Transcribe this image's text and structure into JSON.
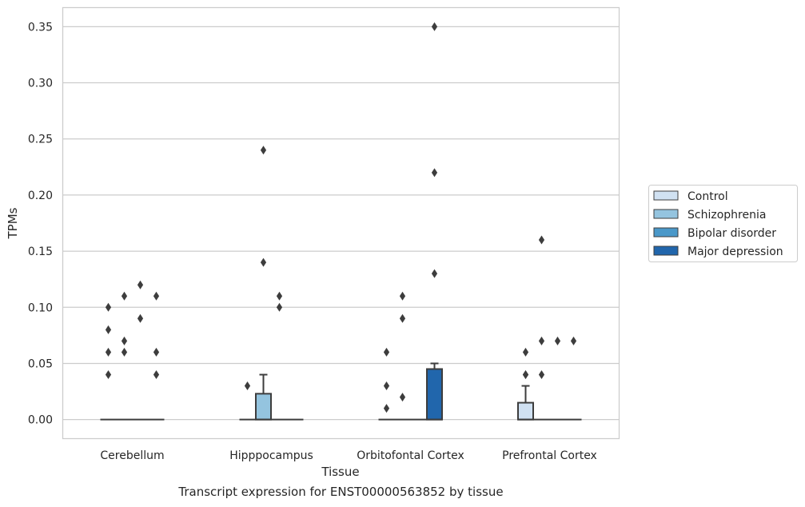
{
  "caption": "Transcript expression for ENST00000563852 by tissue",
  "chart_data": {
    "type": "box",
    "title": "",
    "xlabel": "Tissue",
    "ylabel": "TPMs",
    "ylim": [
      -0.017,
      0.367
    ],
    "yticks": [
      "0.00",
      "0.05",
      "0.10",
      "0.15",
      "0.20",
      "0.25",
      "0.30",
      "0.35"
    ],
    "ytick_values": [
      0,
      0.05,
      0.1,
      0.15,
      0.2,
      0.25,
      0.3,
      0.35
    ],
    "grid": true,
    "legend_position": "right",
    "categories": [
      "Cerebellum",
      "Hipppocampus",
      "Orbitofontal Cortex",
      "Prefrontal Cortex"
    ],
    "series": [
      {
        "name": "Control",
        "color": "#d0e1f2",
        "boxes": [
          {
            "q1": 0,
            "median": 0,
            "q3": 0,
            "whisker_low": 0,
            "whisker_high": 0,
            "outliers": [
              0.1,
              0.08,
              0.06,
              0.04
            ]
          },
          {
            "q1": 0,
            "median": 0,
            "q3": 0,
            "whisker_low": 0,
            "whisker_high": 0,
            "outliers": [
              0.03
            ]
          },
          {
            "q1": 0,
            "median": 0,
            "q3": 0,
            "whisker_low": 0,
            "whisker_high": 0,
            "outliers": [
              0.06,
              0.03,
              0.01
            ]
          },
          {
            "q1": 0,
            "median": 0,
            "q3": 0.015,
            "whisker_low": 0,
            "whisker_high": 0.03,
            "outliers": [
              0.06,
              0.04,
              0.04
            ]
          }
        ]
      },
      {
        "name": "Schizophrenia",
        "color": "#94c4df",
        "boxes": [
          {
            "q1": 0,
            "median": 0,
            "q3": 0,
            "whisker_low": 0,
            "whisker_high": 0,
            "outliers": [
              0.11,
              0.07,
              0.06
            ]
          },
          {
            "q1": 0,
            "median": 0,
            "q3": 0.023,
            "whisker_low": 0,
            "whisker_high": 0.04,
            "outliers": [
              0.24,
              0.14
            ]
          },
          {
            "q1": 0,
            "median": 0,
            "q3": 0,
            "whisker_low": 0,
            "whisker_high": 0,
            "outliers": [
              0.11,
              0.09,
              0.02
            ]
          },
          {
            "q1": 0,
            "median": 0,
            "q3": 0,
            "whisker_low": 0,
            "whisker_high": 0,
            "outliers": [
              0.16,
              0.07,
              0.04
            ]
          }
        ]
      },
      {
        "name": "Bipolar disorder",
        "color": "#4a98c9",
        "boxes": [
          {
            "q1": 0,
            "median": 0,
            "q3": 0,
            "whisker_low": 0,
            "whisker_high": 0,
            "outliers": [
              0.12,
              0.09
            ]
          },
          {
            "q1": 0,
            "median": 0,
            "q3": 0,
            "whisker_low": 0,
            "whisker_high": 0,
            "outliers": [
              0.11,
              0.1
            ]
          },
          {
            "q1": 0,
            "median": 0,
            "q3": 0,
            "whisker_low": 0,
            "whisker_high": 0,
            "outliers": []
          },
          {
            "q1": 0,
            "median": 0,
            "q3": 0,
            "whisker_low": 0,
            "whisker_high": 0,
            "outliers": [
              0.07
            ]
          }
        ]
      },
      {
        "name": "Major depression",
        "color": "#2166ac",
        "boxes": [
          {
            "q1": 0,
            "median": 0,
            "q3": 0,
            "whisker_low": 0,
            "whisker_high": 0,
            "outliers": [
              0.11,
              0.06,
              0.04
            ]
          },
          {
            "q1": 0,
            "median": 0,
            "q3": 0,
            "whisker_low": 0,
            "whisker_high": 0,
            "outliers": []
          },
          {
            "q1": 0,
            "median": 0,
            "q3": 0.045,
            "whisker_low": 0,
            "whisker_high": 0.05,
            "outliers": [
              0.35,
              0.22,
              0.13
            ]
          },
          {
            "q1": 0,
            "median": 0,
            "q3": 0,
            "whisker_low": 0,
            "whisker_high": 0,
            "outliers": [
              0.07
            ]
          }
        ]
      }
    ]
  }
}
